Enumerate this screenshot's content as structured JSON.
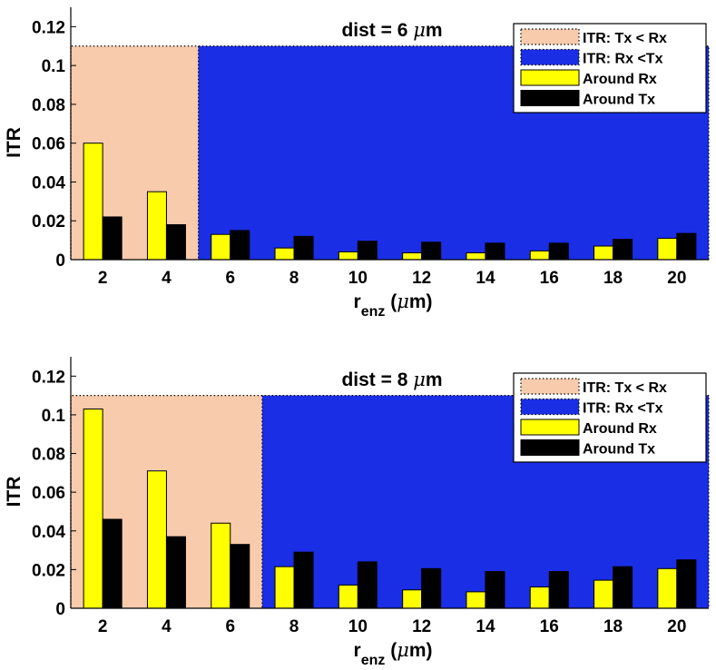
{
  "colors": {
    "region_a": "#f8cbad",
    "region_b": "#1a2ee6",
    "around_rx": "#ffff00",
    "around_tx": "#000000"
  },
  "chart_data": [
    {
      "type": "bar",
      "title_prefix": "dist = 6 ",
      "title_unit_symbol": "μ",
      "title_unit": "m",
      "xlabel_main": "r",
      "xlabel_sub": "enz",
      "xlabel_unit_open": " (",
      "xlabel_unit_symbol": "μ",
      "xlabel_unit_close": "m)",
      "ylabel": "ITR",
      "categories": [
        "2",
        "4",
        "6",
        "8",
        "10",
        "12",
        "14",
        "16",
        "18",
        "20"
      ],
      "ylim": [
        0,
        0.13
      ],
      "yticks": [
        0,
        0.02,
        0.04,
        0.06,
        0.08,
        0.1,
        0.12
      ],
      "ytick_labels": [
        "0",
        "0.02",
        "0.04",
        "0.06",
        "0.08",
        "0.1",
        "0.12"
      ],
      "region_level": 0.11,
      "region_boundary_index": 2,
      "series": [
        {
          "name": "Around Rx",
          "values": [
            0.06,
            0.035,
            0.013,
            0.006,
            0.004,
            0.0035,
            0.0035,
            0.0045,
            0.007,
            0.011
          ]
        },
        {
          "name": "Around Tx",
          "values": [
            0.022,
            0.018,
            0.015,
            0.012,
            0.0095,
            0.009,
            0.0085,
            0.0085,
            0.0105,
            0.0135
          ]
        }
      ],
      "legend": [
        {
          "label": "ITR: Tx < Rx",
          "kind": "region_a"
        },
        {
          "label": "ITR: Rx <Tx",
          "kind": "region_b"
        },
        {
          "label": "Around Rx",
          "kind": "around_rx"
        },
        {
          "label": "Around Tx",
          "kind": "around_tx"
        }
      ],
      "legend_position": "top-right"
    },
    {
      "type": "bar",
      "title_prefix": "dist = 8 ",
      "title_unit_symbol": "μ",
      "title_unit": "m",
      "xlabel_main": "r",
      "xlabel_sub": "enz",
      "xlabel_unit_open": " (",
      "xlabel_unit_symbol": "μ",
      "xlabel_unit_close": "m)",
      "ylabel": "ITR",
      "categories": [
        "2",
        "4",
        "6",
        "8",
        "10",
        "12",
        "14",
        "16",
        "18",
        "20"
      ],
      "ylim": [
        0,
        0.13
      ],
      "yticks": [
        0,
        0.02,
        0.04,
        0.06,
        0.08,
        0.1,
        0.12
      ],
      "ytick_labels": [
        "0",
        "0.02",
        "0.04",
        "0.06",
        "0.08",
        "0.1",
        "0.12"
      ],
      "region_level": 0.11,
      "region_boundary_index": 3,
      "series": [
        {
          "name": "Around Rx",
          "values": [
            0.103,
            0.071,
            0.044,
            0.0215,
            0.012,
            0.0095,
            0.0085,
            0.011,
            0.0145,
            0.0205
          ]
        },
        {
          "name": "Around Tx",
          "values": [
            0.046,
            0.037,
            0.033,
            0.029,
            0.024,
            0.0205,
            0.019,
            0.019,
            0.0215,
            0.025
          ]
        }
      ],
      "legend": [
        {
          "label": "ITR: Tx < Rx",
          "kind": "region_a"
        },
        {
          "label": "ITR: Rx <Tx",
          "kind": "region_b"
        },
        {
          "label": "Around Rx",
          "kind": "around_rx"
        },
        {
          "label": "Around Tx",
          "kind": "around_tx"
        }
      ],
      "legend_position": "top-right"
    }
  ]
}
